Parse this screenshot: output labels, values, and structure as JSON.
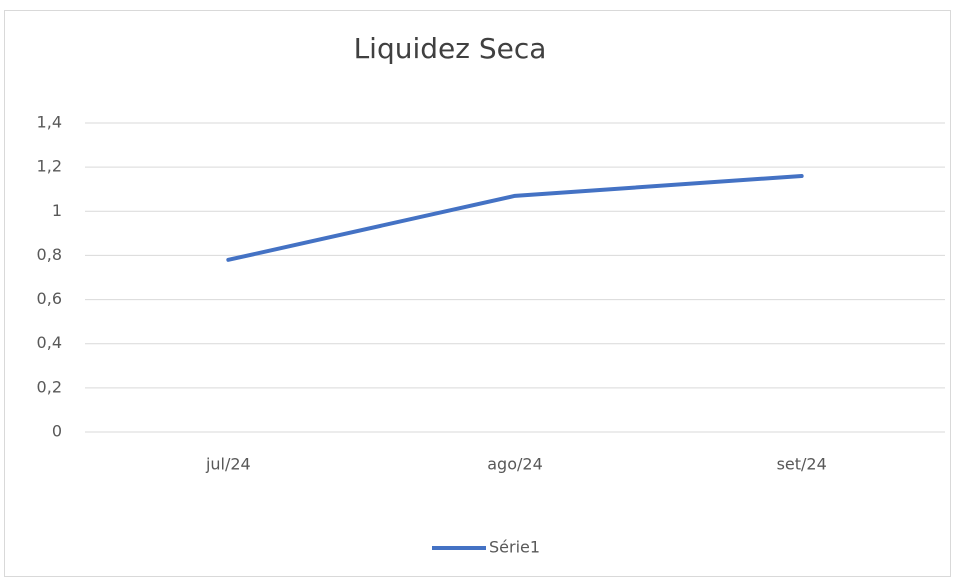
{
  "chart_data": {
    "type": "line",
    "title": "Liquidez Seca",
    "categories": [
      "jul/24",
      "ago/24",
      "set/24"
    ],
    "series": [
      {
        "name": "Série1",
        "color": "#4472c4",
        "values": [
          0.78,
          1.07,
          1.16
        ]
      }
    ],
    "ylim": [
      0,
      1.4
    ],
    "yticks": [
      0,
      {
        "value": 0.2,
        "label": "0,2"
      },
      {
        "value": 0.4,
        "label": "0,4"
      },
      {
        "value": 0.6,
        "label": "0,6"
      },
      {
        "value": 0.8,
        "label": "0,8"
      },
      1,
      {
        "value": 1.2,
        "label": "1,2"
      },
      {
        "value": 1.4,
        "label": "1,4"
      }
    ],
    "grid": true,
    "legend": "bottom"
  }
}
